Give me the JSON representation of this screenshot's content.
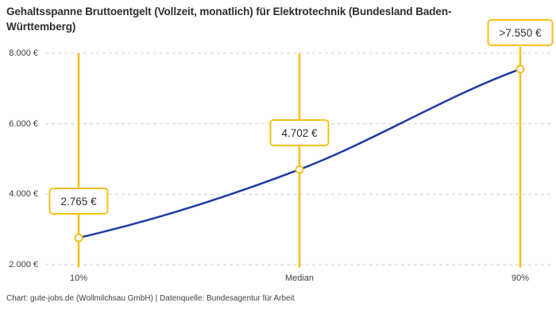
{
  "chart_data": {
    "type": "line",
    "title": "Gehaltsspanne Bruttoentgelt (Vollzeit, monatlich) für Elektrotechnik (Bundesland Baden-Württemberg)",
    "categories": [
      "10%",
      "Median",
      "90%"
    ],
    "values": [
      2765,
      4702,
      7550
    ],
    "value_labels": [
      "2.765 €",
      "4.702 €",
      ">7.550 €"
    ],
    "y_ticks": [
      {
        "value": 8000,
        "label": "8.000 €"
      },
      {
        "value": 6000,
        "label": "6.000 €"
      },
      {
        "value": 4000,
        "label": "4.000 €"
      },
      {
        "value": 2000,
        "label": "2.000 €"
      }
    ],
    "ylim": [
      2000,
      8000
    ],
    "xlabel": "",
    "ylabel": "",
    "grid": "horizontal-dashed",
    "legend": "none",
    "credit": "Chart: gute-jobs.de (Wollmilchsau GmbH) | Datenquelle: Bundesagentur für Arbeit",
    "colors": {
      "line": "#1e3ca8",
      "accent": "#f5c018",
      "grid": "#cfcfcf",
      "text": "#404040",
      "title": "#2d2d2d"
    }
  }
}
